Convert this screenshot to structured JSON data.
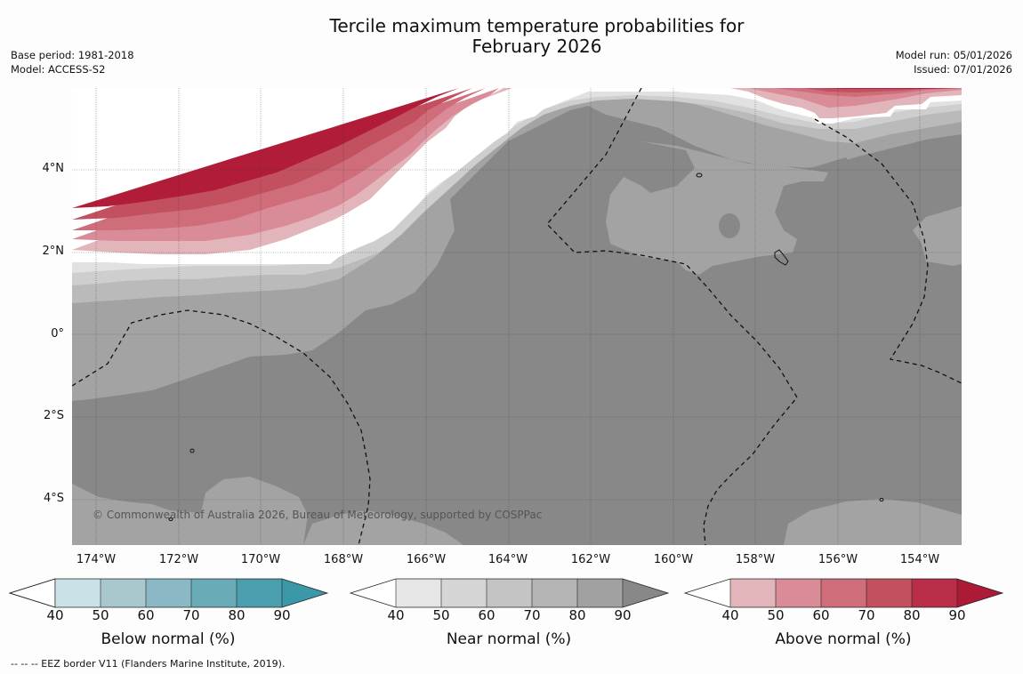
{
  "title": {
    "line1": "Tercile maximum temperature probabilities for",
    "line2": "February 2026"
  },
  "meta": {
    "base_period": "Base period: 1981-2018",
    "model": "Model: ACCESS-S2",
    "model_run": "Model run: 05/01/2026",
    "issued": "Issued: 07/01/2026"
  },
  "map": {
    "lat_labels": [
      "4°N",
      "2°N",
      "0°",
      "2°S",
      "4°S"
    ],
    "lon_labels": [
      "174°W",
      "172°W",
      "170°W",
      "168°W",
      "166°W",
      "164°W",
      "162°W",
      "160°W",
      "158°W",
      "156°W",
      "154°W"
    ],
    "copyright": "© Commonwealth of Australia 2026, Bureau of Meteorology, supported by COSPPac",
    "colors": {
      "near_90": "#888888",
      "near_80": "#a3a3a3",
      "near_70": "#bababa",
      "near_60": "#cecece",
      "near_50": "#e1e1e1",
      "white": "#ffffff",
      "above_50": "#e2b5bb",
      "above_60": "#d98c98",
      "above_70": "#cf6d7b",
      "above_80": "#c2505f",
      "above_90": "#b11c38"
    }
  },
  "colorbars": {
    "below": {
      "title": "Below normal (%)",
      "ticks": [
        "40",
        "50",
        "60",
        "70",
        "80",
        "90"
      ],
      "colors": [
        "#ffffff",
        "#c9e1e7",
        "#a8c8cd",
        "#8ab8c4",
        "#6aabb8",
        "#4a9eae",
        "#3a98a8"
      ]
    },
    "near": {
      "title": "Near normal (%)",
      "ticks": [
        "40",
        "50",
        "60",
        "70",
        "80",
        "90"
      ],
      "colors": [
        "#ffffff",
        "#e6e6e6",
        "#d5d5d5",
        "#c4c4c4",
        "#b4b4b4",
        "#a1a1a1",
        "#888888"
      ]
    },
    "above": {
      "title": "Above normal (%)",
      "ticks": [
        "40",
        "50",
        "60",
        "70",
        "80",
        "90"
      ],
      "colors": [
        "#ffffff",
        "#e2b5bb",
        "#d98c98",
        "#cf6d7b",
        "#c2505f",
        "#b92d48",
        "#ad1a35"
      ]
    }
  },
  "footnote": "--  --  -- EEZ border V11 (Flanders Marine Institute, 2019)."
}
